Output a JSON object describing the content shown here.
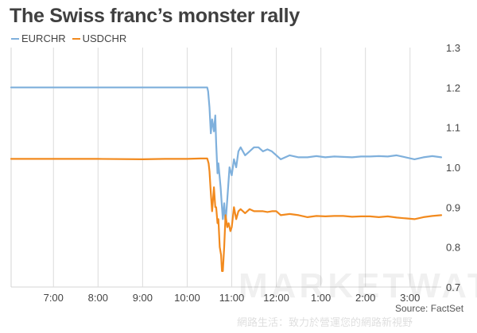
{
  "chart_data": {
    "type": "line",
    "title": "The Swiss franc’s monster rally",
    "xlabel": "",
    "ylabel": "",
    "x_ticks": [
      "7:00",
      "8:00",
      "9:00",
      "10:00",
      "11:00",
      "12:00",
      "1:00",
      "2:00",
      "3:00"
    ],
    "x_range": [
      6.05,
      15.7
    ],
    "ylim": [
      0.7,
      1.3
    ],
    "y_ticks": [
      "0.7",
      "0.8",
      "0.9",
      "1.0",
      "1.1",
      "1.2",
      "1.3"
    ],
    "grid": "vertical",
    "legend": "top-left",
    "series": [
      {
        "name": "EURCHR",
        "color": "#7fb0dc",
        "x": [
          6.05,
          7,
          8,
          9,
          9.5,
          10,
          10.3,
          10.45,
          10.47,
          10.5,
          10.53,
          10.56,
          10.6,
          10.63,
          10.65,
          10.68,
          10.7,
          10.75,
          10.78,
          10.8,
          10.83,
          10.86,
          10.9,
          10.95,
          11.0,
          11.05,
          11.1,
          11.15,
          11.2,
          11.3,
          11.4,
          11.5,
          11.6,
          11.7,
          11.8,
          11.9,
          12.0,
          12.1,
          12.3,
          12.5,
          12.7,
          12.9,
          13.1,
          13.3,
          13.5,
          13.7,
          13.9,
          14.1,
          14.3,
          14.5,
          14.7,
          14.9,
          15.1,
          15.3,
          15.5,
          15.7
        ],
        "values": [
          1.2,
          1.2,
          1.2,
          1.2,
          1.2,
          1.2,
          1.2,
          1.2,
          1.19,
          1.15,
          1.085,
          1.12,
          1.09,
          1.13,
          1.06,
          0.985,
          1.01,
          0.95,
          0.9,
          0.87,
          0.91,
          0.86,
          0.92,
          1.0,
          0.98,
          1.02,
          1.0,
          1.04,
          1.05,
          1.03,
          1.04,
          1.05,
          1.05,
          1.04,
          1.045,
          1.04,
          1.03,
          1.02,
          1.03,
          1.025,
          1.025,
          1.028,
          1.025,
          1.027,
          1.026,
          1.025,
          1.027,
          1.027,
          1.028,
          1.027,
          1.03,
          1.025,
          1.02,
          1.025,
          1.028,
          1.025
        ]
      },
      {
        "name": "USDCHR",
        "color": "#f28a1e",
        "x": [
          6.05,
          7,
          8,
          9,
          9.5,
          10,
          10.3,
          10.45,
          10.48,
          10.5,
          10.53,
          10.56,
          10.6,
          10.63,
          10.65,
          10.68,
          10.7,
          10.73,
          10.76,
          10.78,
          10.8,
          10.83,
          10.86,
          10.9,
          10.93,
          10.97,
          11.0,
          11.05,
          11.1,
          11.15,
          11.2,
          11.3,
          11.4,
          11.5,
          11.6,
          11.7,
          11.8,
          11.9,
          12.0,
          12.1,
          12.3,
          12.5,
          12.7,
          12.9,
          13.1,
          13.3,
          13.5,
          13.7,
          13.9,
          14.1,
          14.3,
          14.5,
          14.7,
          14.9,
          15.1,
          15.3,
          15.5,
          15.7
        ],
        "values": [
          1.021,
          1.021,
          1.021,
          1.02,
          1.021,
          1.021,
          1.022,
          1.022,
          1.01,
          0.99,
          0.935,
          0.89,
          0.95,
          0.9,
          0.9,
          0.86,
          0.87,
          0.8,
          0.78,
          0.74,
          0.74,
          0.8,
          0.88,
          0.85,
          0.86,
          0.84,
          0.85,
          0.9,
          0.87,
          0.89,
          0.895,
          0.885,
          0.895,
          0.89,
          0.89,
          0.89,
          0.888,
          0.89,
          0.89,
          0.88,
          0.883,
          0.88,
          0.875,
          0.878,
          0.877,
          0.878,
          0.878,
          0.876,
          0.877,
          0.877,
          0.875,
          0.877,
          0.874,
          0.872,
          0.87,
          0.875,
          0.878,
          0.88
        ]
      }
    ]
  },
  "source": "Source: FactSet",
  "watermark": "MARKETWATCH",
  "watermark_sub": "網路生活：致力於營運您的網路新視野"
}
